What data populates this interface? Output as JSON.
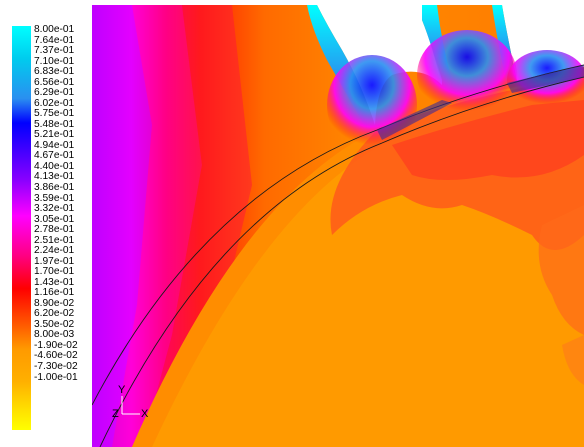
{
  "colorbar": {
    "labels": [
      "8.00e-01",
      "7.64e-01",
      "7.37e-01",
      "7.10e-01",
      "6.83e-01",
      "6.56e-01",
      "6.29e-01",
      "6.02e-01",
      "5.75e-01",
      "5.48e-01",
      "5.21e-01",
      "4.94e-01",
      "4.67e-01",
      "4.40e-01",
      "4.13e-01",
      "3.86e-01",
      "3.59e-01",
      "3.32e-01",
      "3.05e-01",
      "2.78e-01",
      "2.51e-01",
      "2.24e-01",
      "1.97e-01",
      "1.70e-01",
      "1.43e-01",
      "1.16e-01",
      "8.90e-02",
      "6.20e-02",
      "3.50e-02",
      "8.00e-03",
      "-1.90e-02",
      "-4.60e-02",
      "-7.30e-02",
      "-1.00e-01"
    ],
    "colors": [
      "#00ffff",
      "#0000ff",
      "#ff00ff",
      "#ff0000",
      "#ff9a00",
      "#ffff00"
    ]
  },
  "axes": {
    "y": "Y",
    "z": "Z",
    "x": "X"
  }
}
